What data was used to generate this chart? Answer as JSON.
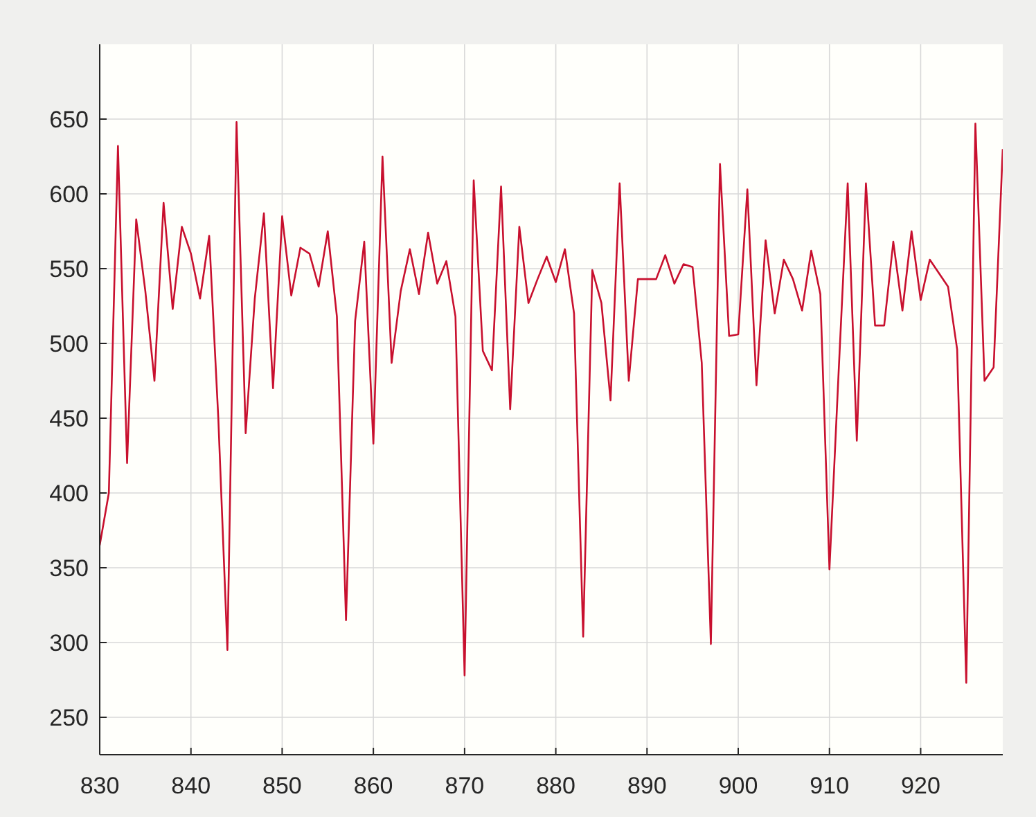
{
  "chart_data": {
    "type": "line",
    "xlim": [
      830,
      929
    ],
    "ylim": [
      225,
      700
    ],
    "xticks": [
      830,
      840,
      850,
      860,
      870,
      880,
      890,
      900,
      910,
      920
    ],
    "yticks": [
      250,
      300,
      350,
      400,
      450,
      500,
      550,
      600,
      650
    ],
    "grid": true,
    "x": [
      830,
      831,
      832,
      833,
      834,
      835,
      836,
      837,
      838,
      839,
      840,
      841,
      842,
      843,
      844,
      845,
      846,
      847,
      848,
      849,
      850,
      851,
      852,
      853,
      854,
      855,
      856,
      857,
      858,
      859,
      860,
      861,
      862,
      863,
      864,
      865,
      866,
      867,
      868,
      869,
      870,
      871,
      872,
      873,
      874,
      875,
      876,
      877,
      878,
      879,
      880,
      881,
      882,
      883,
      884,
      885,
      886,
      887,
      888,
      889,
      890,
      891,
      892,
      893,
      894,
      895,
      896,
      897,
      898,
      899,
      900,
      901,
      902,
      903,
      904,
      905,
      906,
      907,
      908,
      909,
      910,
      911,
      912,
      913,
      914,
      915,
      916,
      917,
      918,
      919,
      920,
      921,
      922,
      923,
      924,
      925,
      926,
      927,
      928,
      929
    ],
    "series": [
      {
        "color": "#c8102e",
        "values": [
          365,
          400,
          632,
          420,
          583,
          535,
          475,
          594,
          523,
          578,
          560,
          530,
          572,
          450,
          295,
          648,
          440,
          530,
          587,
          470,
          585,
          532,
          564,
          560,
          538,
          575,
          518,
          315,
          515,
          568,
          433,
          625,
          487,
          535,
          563,
          533,
          574,
          540,
          555,
          518,
          278,
          609,
          495,
          482,
          605,
          456,
          578,
          527,
          543,
          558,
          541,
          563,
          520,
          304,
          549,
          527,
          462,
          607,
          475,
          543,
          543,
          543,
          559,
          540,
          553,
          551,
          487,
          299,
          620,
          505,
          506,
          603,
          472,
          569,
          520,
          556,
          543,
          522,
          562,
          533,
          349,
          480,
          607,
          435,
          607,
          512,
          512,
          568,
          522,
          575,
          529,
          556,
          547,
          538,
          496,
          273,
          647,
          475,
          484,
          630
        ]
      }
    ]
  }
}
